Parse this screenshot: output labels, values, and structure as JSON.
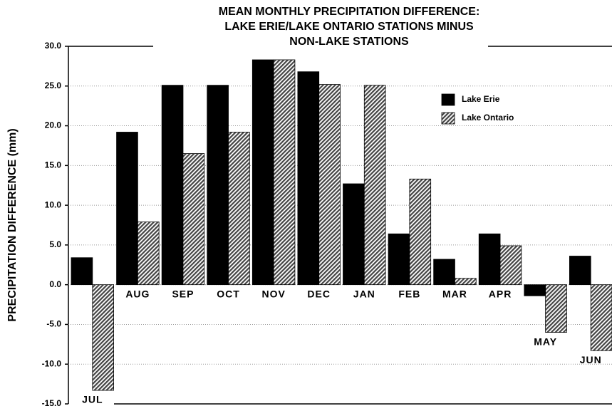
{
  "chart_data": {
    "type": "bar",
    "title": [
      "MEAN MONTHLY PRECIPITATION DIFFERENCE:",
      "LAKE ERIE/LAKE ONTARIO STATIONS MINUS",
      "NON-LAKE STATIONS"
    ],
    "y_label": "PRECIPITATION  DIFFERENCE  (mm)",
    "categories": [
      "JUL",
      "AUG",
      "SEP",
      "OCT",
      "NOV",
      "DEC",
      "JAN",
      "FEB",
      "MAR",
      "APR",
      "MAY",
      "JUN"
    ],
    "series": [
      {
        "name": "Lake Erie",
        "color": "#000000",
        "values": [
          3.4,
          19.2,
          25.1,
          25.1,
          28.3,
          26.8,
          12.7,
          6.4,
          3.2,
          6.4,
          -1.4,
          3.6
        ]
      },
      {
        "name": "Lake Ontario",
        "color": "#555555",
        "hatched": true,
        "values": [
          -13.3,
          7.9,
          16.5,
          19.2,
          28.3,
          25.2,
          25.1,
          13.3,
          0.8,
          4.9,
          -6.0,
          -8.3
        ]
      }
    ],
    "ylim": [
      -15,
      30
    ],
    "yticks": [
      {
        "value": 30,
        "label": "30.0"
      },
      {
        "value": 25,
        "label": "25.0"
      },
      {
        "value": 20,
        "label": "20.0"
      },
      {
        "value": 15,
        "label": "15.0"
      },
      {
        "value": 10,
        "label": "10.0"
      },
      {
        "value": 5,
        "label": "5.0"
      },
      {
        "value": 0,
        "label": "0.0"
      },
      {
        "value": -5,
        "label": "-5.0"
      },
      {
        "value": -10,
        "label": "-10.0"
      },
      {
        "value": -15,
        "label": "-15.0"
      }
    ],
    "grid": true,
    "legend": "upper right"
  }
}
